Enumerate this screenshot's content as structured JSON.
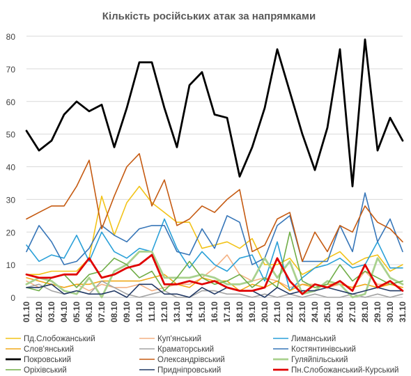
{
  "chart_data": {
    "type": "line",
    "title": "Кількість російських атак за напрямками",
    "xlabel": "",
    "ylabel": "",
    "ylim": [
      0,
      80
    ],
    "yticks": [
      0,
      10,
      20,
      30,
      40,
      50,
      60,
      70,
      80
    ],
    "grid": true,
    "legend_position": "bottom",
    "categories": [
      "01.10",
      "02.10",
      "03.10",
      "04.10",
      "05.10",
      "06.10",
      "07.10",
      "08.10",
      "09.10",
      "10.10",
      "11.10",
      "12.10",
      "13.10",
      "14.10",
      "15.10",
      "16.10",
      "17.10",
      "18.10",
      "19.10",
      "20.10",
      "21.10",
      "22.10",
      "23.10",
      "24.10",
      "25.10",
      "26.10",
      "27.10",
      "28.10",
      "29.10",
      "30.10",
      "31.10"
    ],
    "series": [
      {
        "name": "Пд.Слобожанський",
        "color": "#f2c318",
        "width": 1.6,
        "values": [
          7,
          7,
          8,
          8,
          8,
          12,
          31,
          19,
          29,
          34,
          29,
          26,
          23,
          23,
          15,
          16,
          17,
          15,
          18,
          10,
          10,
          12,
          7,
          9,
          12,
          14,
          10,
          12,
          13,
          8,
          10
        ]
      },
      {
        "name": "Куп'янський",
        "color": "#f4b183",
        "width": 1.6,
        "values": [
          5,
          3,
          4,
          3,
          4,
          2,
          4,
          3,
          3,
          4,
          2,
          3,
          4,
          4,
          6,
          9,
          13,
          7,
          5,
          6,
          5,
          3,
          4,
          4,
          3,
          4,
          3,
          8,
          4,
          4,
          3
        ]
      },
      {
        "name": "Лиманський",
        "color": "#2aa0d8",
        "width": 1.6,
        "values": [
          16,
          11,
          13,
          12,
          19,
          11,
          20,
          14,
          12,
          15,
          14,
          24,
          15,
          9,
          14,
          10,
          8,
          12,
          13,
          5,
          17,
          2,
          6,
          9,
          10,
          12,
          9,
          10,
          17,
          9,
          9
        ]
      },
      {
        "name": "Слов'янський",
        "color": "#f0a818",
        "width": 1.6,
        "values": [
          6,
          5,
          4,
          3,
          4,
          4,
          5,
          5,
          5,
          5,
          6,
          7,
          4,
          3,
          6,
          5,
          5,
          2,
          4,
          3,
          5,
          2,
          4,
          3,
          4,
          4,
          3,
          4,
          3,
          4,
          3
        ]
      },
      {
        "name": "Краматорський",
        "color": "#a3a3a3",
        "width": 1.6,
        "values": [
          3,
          4,
          2,
          1,
          2,
          1,
          5,
          3,
          1,
          0,
          1,
          2,
          0,
          0,
          2,
          2,
          1,
          1,
          0,
          1,
          0,
          1,
          0,
          1,
          0,
          0,
          1,
          0,
          1,
          0,
          1
        ]
      },
      {
        "name": "Костянтинівський",
        "color": "#3776b8",
        "width": 1.6,
        "values": [
          14,
          22,
          17,
          10,
          11,
          15,
          22,
          19,
          17,
          21,
          22,
          22,
          14,
          13,
          21,
          15,
          25,
          23,
          10,
          12,
          22,
          25,
          11,
          11,
          11,
          22,
          14,
          32,
          17,
          24,
          14
        ]
      },
      {
        "name": "Покровський",
        "color": "#000000",
        "width": 2.8,
        "values": [
          51,
          45,
          48,
          56,
          60,
          57,
          59,
          46,
          58,
          72,
          72,
          58,
          46,
          65,
          69,
          56,
          55,
          37,
          46,
          58,
          76,
          63,
          50,
          39,
          52,
          76,
          34,
          79,
          45,
          55,
          48
        ]
      },
      {
        "name": "Олександрівський",
        "color": "#c55a11",
        "width": 1.6,
        "values": [
          24,
          26,
          28,
          28,
          34,
          42,
          21,
          31,
          40,
          44,
          28,
          36,
          22,
          24,
          28,
          26,
          30,
          33,
          14,
          16,
          24,
          26,
          11,
          20,
          14,
          22,
          20,
          28,
          23,
          21,
          17
        ]
      },
      {
        "name": "Гуляйпільський",
        "color": "#a9d18e",
        "width": 2.8,
        "values": [
          4,
          6,
          5,
          2,
          1,
          6,
          0,
          8,
          10,
          14,
          14,
          6,
          6,
          6,
          7,
          6,
          4,
          4,
          5,
          12,
          6,
          11,
          1,
          2,
          5,
          4,
          0,
          1,
          12,
          6,
          4
        ]
      },
      {
        "name": "Оріхівський",
        "color": "#70ad47",
        "width": 1.6,
        "values": [
          3,
          2,
          6,
          7,
          3,
          7,
          8,
          12,
          10,
          6,
          8,
          2,
          6,
          11,
          6,
          4,
          5,
          7,
          3,
          6,
          3,
          20,
          5,
          3,
          4,
          10,
          5,
          8,
          6,
          4,
          5
        ]
      },
      {
        "name": "Придніпровський",
        "color": "#203864",
        "width": 1.6,
        "values": [
          3,
          3,
          4,
          1,
          2,
          1,
          1,
          2,
          0,
          4,
          4,
          1,
          1,
          0,
          3,
          1,
          3,
          2,
          2,
          0,
          3,
          1,
          2,
          2,
          3,
          2,
          1,
          2,
          3,
          2,
          2
        ]
      },
      {
        "name": "Пн.Слобожанський-Курський",
        "color": "#e00000",
        "width": 2.8,
        "values": [
          7,
          6,
          6,
          7,
          7,
          12,
          6,
          7,
          9,
          10,
          13,
          4,
          4,
          5,
          4,
          5,
          3,
          2,
          2,
          3,
          12,
          5,
          1,
          4,
          3,
          5,
          2,
          10,
          3,
          5,
          2
        ]
      }
    ]
  }
}
